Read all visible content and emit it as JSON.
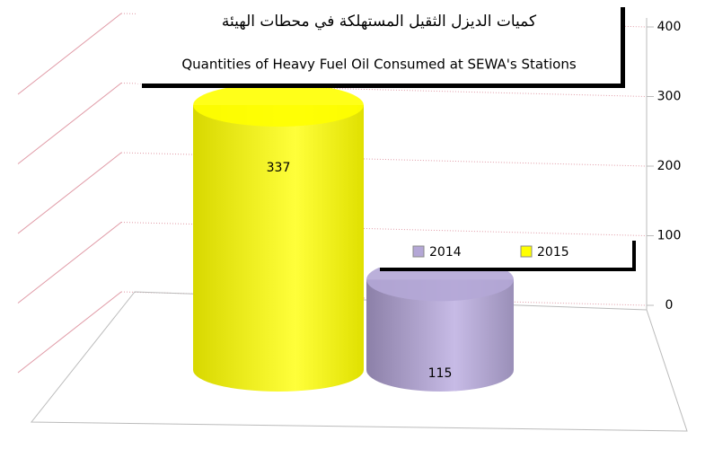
{
  "chart_data": {
    "type": "cylinder",
    "title": "كميات الديزل الثقيل المستهلكة في محطات الهيئة",
    "subtitle": "Quantities of Heavy Fuel Oil Consumed at SEWA's Stations",
    "categories": [
      null
    ],
    "series": [
      {
        "name": "2014",
        "color": "#b4a7d6",
        "values": [
          115
        ]
      },
      {
        "name": "2015",
        "color": "#ffff00",
        "values": [
          337
        ]
      }
    ],
    "ylim": [
      0,
      400
    ],
    "yticks": [
      0,
      100,
      200,
      300,
      400
    ],
    "grid": true
  }
}
